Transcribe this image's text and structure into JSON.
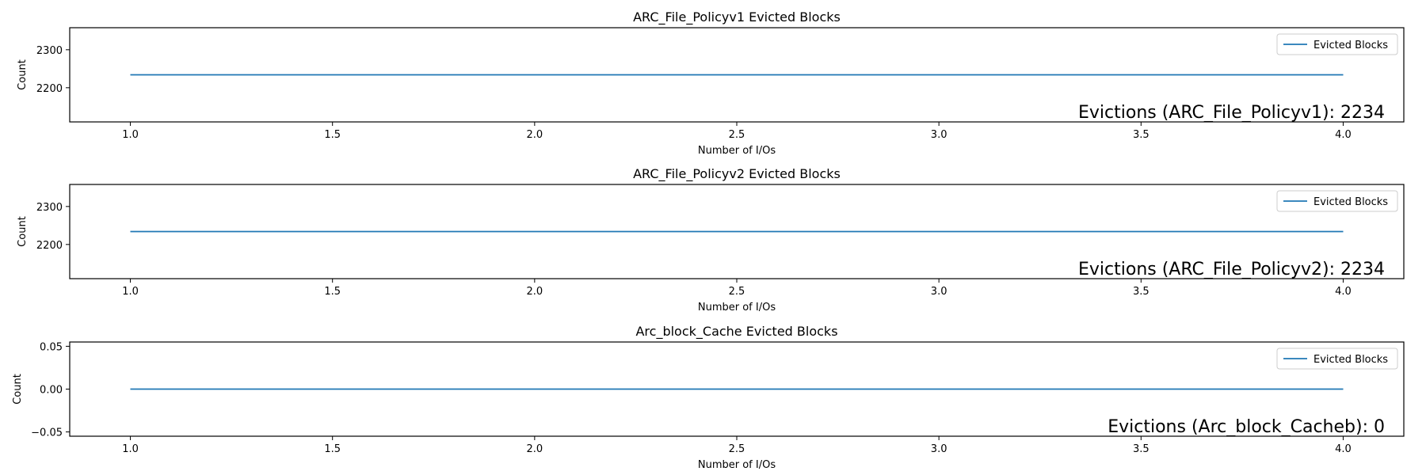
{
  "chart_data": [
    {
      "type": "line",
      "title": "ARC_File_Policyv1 Evicted Blocks",
      "xlabel": "Number of I/Os",
      "ylabel": "Count",
      "xlim": [
        0.85,
        4.15
      ],
      "ylim": [
        2110,
        2358
      ],
      "x_ticks": [
        1.0,
        1.5,
        2.0,
        2.5,
        3.0,
        3.5,
        4.0
      ],
      "x_tick_labels": [
        "1.0",
        "1.5",
        "2.0",
        "2.5",
        "3.0",
        "3.5",
        "4.0"
      ],
      "y_ticks": [
        2200,
        2300
      ],
      "y_tick_labels": [
        "2200",
        "2300"
      ],
      "series": [
        {
          "name": "Evicted Blocks",
          "color": "#1f77b4",
          "x": [
            1.0,
            4.0
          ],
          "values": [
            2234,
            2234
          ]
        }
      ],
      "legend": {
        "position": "top-right",
        "entries": [
          "Evicted Blocks"
        ]
      },
      "annotation": "Evictions (ARC_File_Policyv1): 2234",
      "grid": false
    },
    {
      "type": "line",
      "title": "ARC_File_Policyv2 Evicted Blocks",
      "xlabel": "Number of I/Os",
      "ylabel": "Count",
      "xlim": [
        0.85,
        4.15
      ],
      "ylim": [
        2110,
        2358
      ],
      "x_ticks": [
        1.0,
        1.5,
        2.0,
        2.5,
        3.0,
        3.5,
        4.0
      ],
      "x_tick_labels": [
        "1.0",
        "1.5",
        "2.0",
        "2.5",
        "3.0",
        "3.5",
        "4.0"
      ],
      "y_ticks": [
        2200,
        2300
      ],
      "y_tick_labels": [
        "2200",
        "2300"
      ],
      "series": [
        {
          "name": "Evicted Blocks",
          "color": "#1f77b4",
          "x": [
            1.0,
            4.0
          ],
          "values": [
            2234,
            2234
          ]
        }
      ],
      "legend": {
        "position": "top-right",
        "entries": [
          "Evicted Blocks"
        ]
      },
      "annotation": "Evictions (ARC_File_Policyv2): 2234",
      "grid": false
    },
    {
      "type": "line",
      "title": "Arc_block_Cache Evicted Blocks",
      "xlabel": "Number of I/Os",
      "ylabel": "Count",
      "xlim": [
        0.85,
        4.15
      ],
      "ylim": [
        -0.055,
        0.055
      ],
      "x_ticks": [
        1.0,
        1.5,
        2.0,
        2.5,
        3.0,
        3.5,
        4.0
      ],
      "x_tick_labels": [
        "1.0",
        "1.5",
        "2.0",
        "2.5",
        "3.0",
        "3.5",
        "4.0"
      ],
      "y_ticks": [
        -0.05,
        0.0,
        0.05
      ],
      "y_tick_labels": [
        "−0.05",
        "0.00",
        "0.05"
      ],
      "series": [
        {
          "name": "Evicted Blocks",
          "color": "#1f77b4",
          "x": [
            1.0,
            4.0
          ],
          "values": [
            0,
            0
          ]
        }
      ],
      "legend": {
        "position": "top-right",
        "entries": [
          "Evicted Blocks"
        ]
      },
      "annotation": "Evictions (Arc_block_Cacheb): 0",
      "grid": false
    }
  ]
}
